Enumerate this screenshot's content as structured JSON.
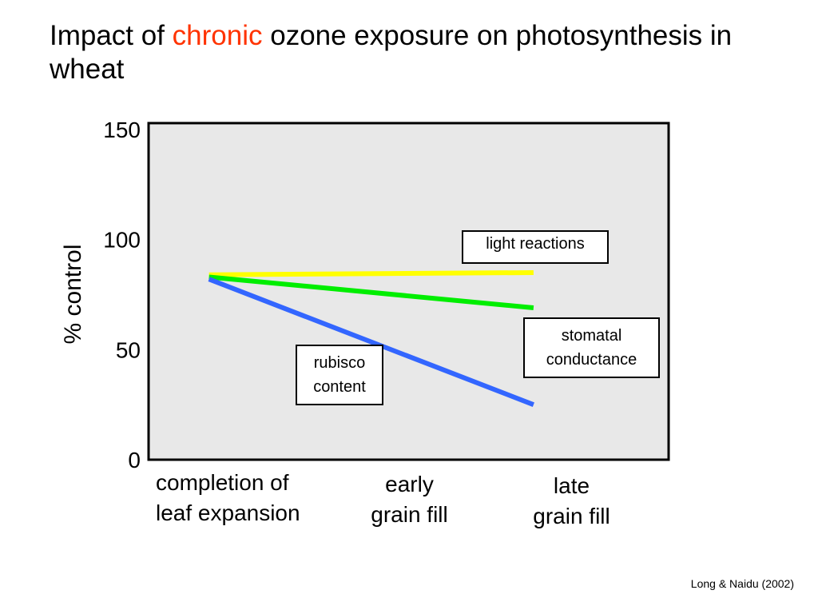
{
  "title": {
    "before": "Impact of ",
    "highlight": "chronic",
    "after": " ozone exposure on photosynthesis in wheat",
    "highlight_color": "#ff3300"
  },
  "chart_data": {
    "type": "line",
    "title": "",
    "ylabel": "% control",
    "xlabel": "",
    "ylim": [
      0,
      150
    ],
    "yticks": [
      0,
      50,
      100,
      150
    ],
    "categories": [
      [
        "completion of",
        "leaf expansion"
      ],
      [
        "early",
        "grain fill"
      ],
      [
        "late",
        "grain fill"
      ]
    ],
    "x": [
      0.12,
      1.95
    ],
    "series": [
      {
        "name": "light reactions",
        "color": "#ffff00",
        "values": [
          84,
          85
        ]
      },
      {
        "name": "stomatal conductance",
        "color": "#00ee00",
        "values": [
          83,
          69
        ]
      },
      {
        "name": "rubisco content",
        "color": "#3366ff",
        "values": [
          82,
          25
        ]
      }
    ],
    "background": "#e8e8e8",
    "grid": false
  },
  "callouts": [
    {
      "lines": [
        "light reactions"
      ]
    },
    {
      "lines": [
        "stomatal",
        "conductance"
      ]
    },
    {
      "lines": [
        "rubisco",
        "content"
      ]
    }
  ],
  "credit": "Long & Naidu (2002)"
}
